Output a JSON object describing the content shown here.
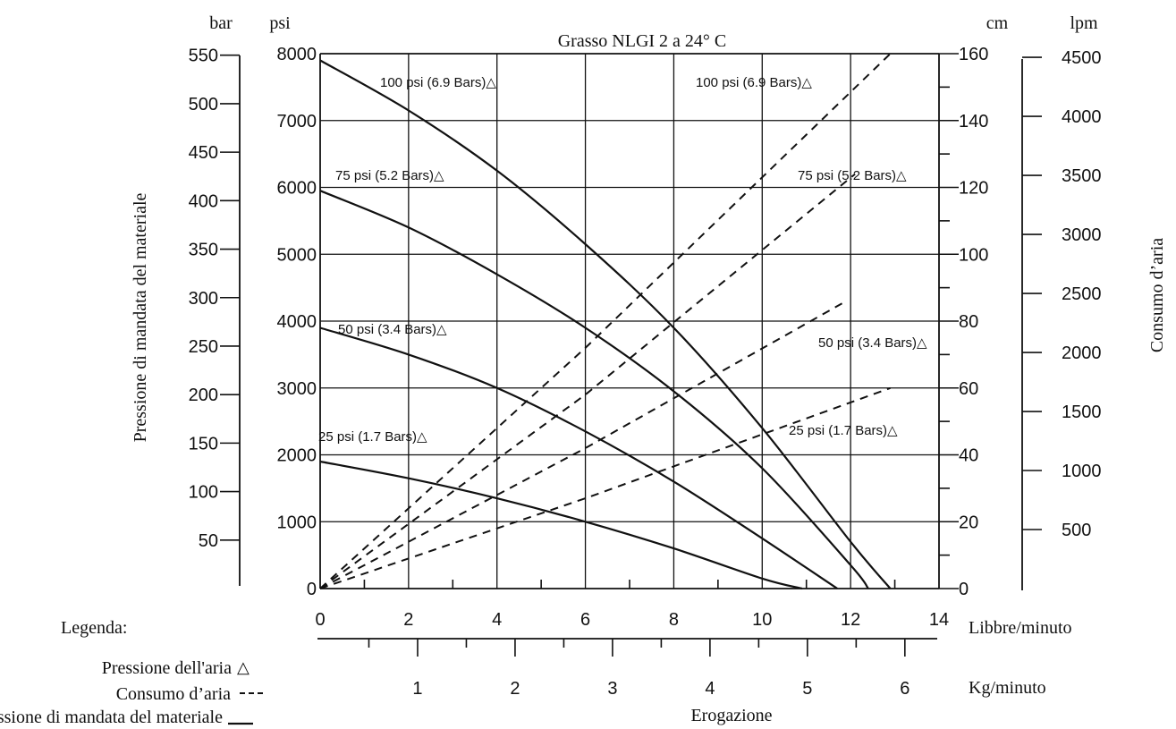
{
  "chart_data": {
    "type": "line",
    "title": "Grasso NLGI 2 a 24° C",
    "x_primary": {
      "label": "Libbre/minuto",
      "ticks": [
        0,
        2,
        4,
        6,
        8,
        10,
        12,
        14
      ],
      "range": [
        0,
        14
      ]
    },
    "x_secondary": {
      "label": "Kg/minuto",
      "ticks": [
        1,
        2,
        3,
        4,
        5,
        6
      ]
    },
    "x_caption": "Erogazione",
    "y_left_psi": {
      "unit": "psi",
      "ticks": [
        0,
        1000,
        2000,
        3000,
        4000,
        5000,
        6000,
        7000,
        8000
      ],
      "range": [
        0,
        8000
      ]
    },
    "y_left_bar": {
      "unit": "bar",
      "ticks": [
        50,
        100,
        150,
        200,
        250,
        300,
        350,
        400,
        450,
        500,
        550
      ]
    },
    "y_left_title": "Pressione di mandata del materiale",
    "y_right_cm": {
      "unit": "cm",
      "ticks": [
        0,
        20,
        40,
        60,
        80,
        100,
        120,
        140,
        160
      ],
      "range": [
        0,
        160
      ]
    },
    "y_right_lpm": {
      "unit": "lpm",
      "ticks": [
        500,
        1000,
        1500,
        2000,
        2500,
        3000,
        3500,
        4000,
        4500
      ]
    },
    "y_right_title": "Consumo d’aria",
    "pressure_series": [
      {
        "name": "100 psi (6.9 Bars)△",
        "x": [
          0,
          2,
          4,
          6,
          8,
          10,
          12,
          12.9
        ],
        "y": [
          7900,
          7150,
          6250,
          5150,
          3900,
          2400,
          700,
          0
        ]
      },
      {
        "name": "75 psi (5.2 Bars)△",
        "x": [
          0,
          2,
          4,
          6,
          8,
          10,
          12,
          12.4
        ],
        "y": [
          5950,
          5400,
          4700,
          3900,
          2950,
          1800,
          350,
          0
        ]
      },
      {
        "name": "50 psi (3.4 Bars)△",
        "x": [
          0,
          2,
          4,
          6,
          8,
          10,
          11.7
        ],
        "y": [
          3900,
          3500,
          3000,
          2350,
          1600,
          750,
          0
        ]
      },
      {
        "name": "25 psi (1.7 Bars)△",
        "x": [
          0,
          2,
          4,
          6,
          8,
          10,
          10.9
        ],
        "y": [
          1900,
          1650,
          1350,
          1000,
          600,
          150,
          0
        ]
      }
    ],
    "air_series": [
      {
        "name": "100 psi (6.9 Bars)△",
        "x": [
          0,
          6,
          12.9
        ],
        "y": [
          0,
          72,
          160
        ]
      },
      {
        "name": "75 psi (5.2 Bars)△",
        "x": [
          0,
          6,
          12.1
        ],
        "y": [
          0,
          58,
          124
        ]
      },
      {
        "name": "50 psi (3.4 Bars)△",
        "x": [
          0,
          6,
          11.9
        ],
        "y": [
          0,
          42,
          86
        ]
      },
      {
        "name": "25 psi (1.7 Bars)△",
        "x": [
          0,
          6,
          12.9
        ],
        "y": [
          0,
          27,
          60
        ]
      }
    ],
    "legend": {
      "title": "Legenda:",
      "items": [
        {
          "label": "Pressione dell'aria",
          "symbol": "△"
        },
        {
          "label": "Consumo d’aria",
          "symbol": "---"
        },
        {
          "label": "Pressione di mandata del materiale",
          "symbol": "___"
        }
      ]
    },
    "grid": true
  }
}
